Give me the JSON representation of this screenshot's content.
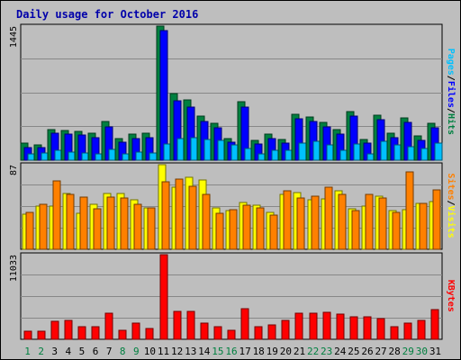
{
  "chart_data": {
    "type": "bar",
    "title": "Daily usage for October 2016",
    "categories": [
      "1",
      "2",
      "3",
      "4",
      "5",
      "6",
      "7",
      "8",
      "9",
      "10",
      "11",
      "12",
      "13",
      "14",
      "15",
      "16",
      "17",
      "18",
      "19",
      "20",
      "21",
      "22",
      "23",
      "24",
      "25",
      "26",
      "27",
      "28",
      "29",
      "30",
      "31"
    ],
    "weekend_days": [
      "1",
      "2",
      "8",
      "9",
      "15",
      "16",
      "22",
      "23",
      "29",
      "30"
    ],
    "panels": [
      {
        "name": "top",
        "max_label": "1445",
        "ymax": 1445,
        "right_label": [
          "Pages",
          "Files",
          "Hits"
        ],
        "series": [
          {
            "name": "Hits",
            "color": "#008040",
            "values": [
              186,
              165,
              332,
              324,
              315,
              290,
              413,
              237,
              282,
              290,
              1445,
              713,
              650,
              476,
              400,
              237,
              626,
              211,
              285,
              227,
              492,
              469,
              404,
              330,
              524,
              221,
              488,
              295,
              455,
              258,
              398
            ]
          },
          {
            "name": "Files",
            "color": "#0000ff",
            "values": [
              137,
              132,
              290,
              280,
              271,
              241,
              356,
              190,
              230,
              241,
              1400,
              640,
              577,
              420,
              347,
              190,
              574,
              170,
              233,
              180,
              445,
              420,
              360,
              282,
              480,
              180,
              433,
              246,
              406,
              210,
              350
            ]
          },
          {
            "name": "Pages",
            "color": "#00c0ff",
            "values": [
              65,
              73,
              103,
              85,
              73,
              69,
              118,
              65,
              88,
              80,
              170,
              232,
              241,
              226,
              211,
              165,
              129,
              69,
              103,
              109,
              185,
              206,
              165,
              109,
              170,
              65,
              200,
              167,
              150,
              129,
              180
            ]
          }
        ]
      },
      {
        "name": "middle",
        "max_label": "87",
        "ymax": 87,
        "right_label": [
          "Sites",
          "Visits"
        ],
        "series": [
          {
            "name": "Visits",
            "color": "#ffff00",
            "values": [
              36,
              44,
              44,
              57,
              37,
              46,
              57,
              57,
              51,
              43,
              87,
              64,
              74,
              71,
              43,
              40,
              48,
              45,
              38,
              56,
              58,
              51,
              52,
              60,
              42,
              44,
              55,
              40,
              41,
              47,
              49
            ]
          },
          {
            "name": "Sites",
            "color": "#ff8000",
            "values": [
              38,
              46,
              70,
              56,
              54,
              42,
              54,
              53,
              46,
              43,
              69,
              72,
              65,
              56,
              37,
              41,
              45,
              43,
              35,
              60,
              53,
              55,
              64,
              56,
              40,
              56,
              53,
              38,
              80,
              47,
              61
            ]
          }
        ]
      },
      {
        "name": "bottom",
        "max_label": "11033",
        "ymax": 11033,
        "right_label": [
          "KBytes"
        ],
        "series": [
          {
            "name": "KBytes",
            "color": "#ff0000",
            "values": [
              1000,
              1100,
              2290,
              2450,
              1600,
              1650,
              3380,
              1130,
              2150,
              1350,
              11033,
              3630,
              3580,
              2100,
              1600,
              1140,
              3940,
              1650,
              1820,
              2450,
              3390,
              3390,
              3490,
              3250,
              2900,
              2900,
              2750,
              1650,
              2150,
              2500,
              3930
            ]
          }
        ]
      }
    ]
  }
}
